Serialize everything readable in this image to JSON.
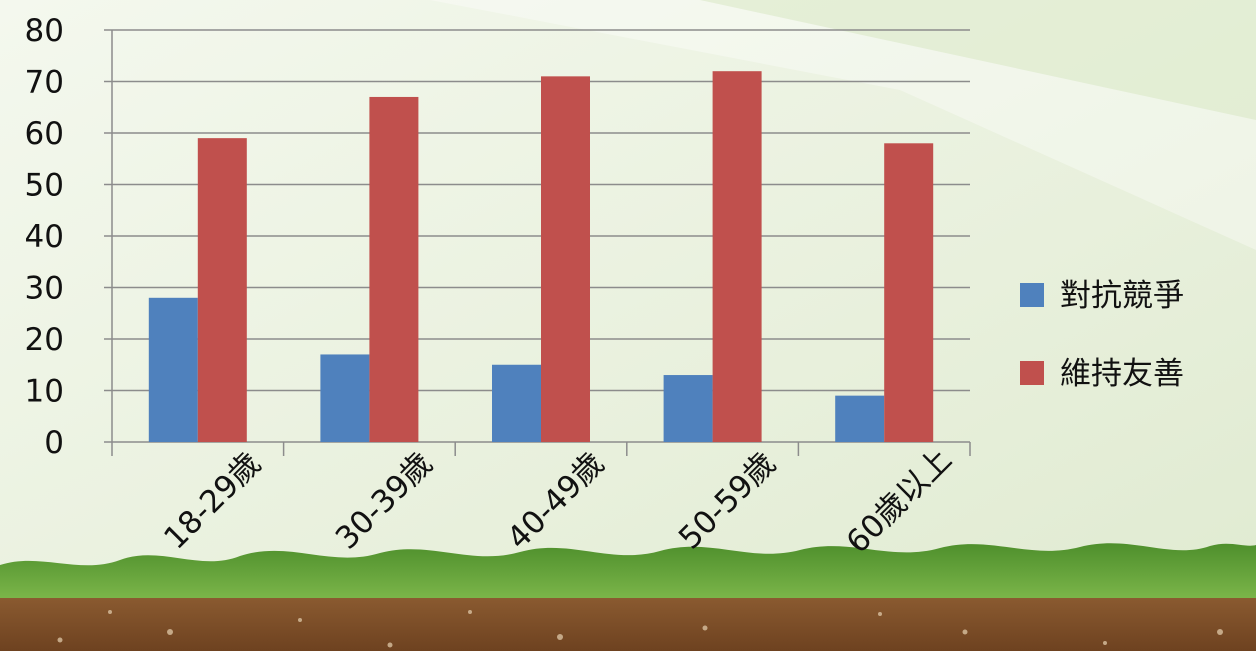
{
  "chart_data": {
    "type": "bar",
    "categories": [
      "18-29歲",
      "30-39歲",
      "40-49歲",
      "50-59歲",
      "60歲以上"
    ],
    "series": [
      {
        "name": "對抗競爭",
        "values": [
          28,
          17,
          15,
          13,
          9
        ],
        "color": "#4f81bd"
      },
      {
        "name": "維持友善",
        "values": [
          59,
          67,
          71,
          72,
          58
        ],
        "color": "#c0504d"
      }
    ],
    "title": "",
    "xlabel": "",
    "ylabel": "",
    "ylim": [
      0,
      80
    ],
    "yticks": [
      0,
      10,
      20,
      30,
      40,
      50,
      60,
      70,
      80
    ],
    "grid": true,
    "legend": "right"
  },
  "colors": {
    "background": "#eaf2de",
    "gridline": "#8c8c8c",
    "grass": "#5c9a34",
    "soil": "#7a4a26"
  }
}
